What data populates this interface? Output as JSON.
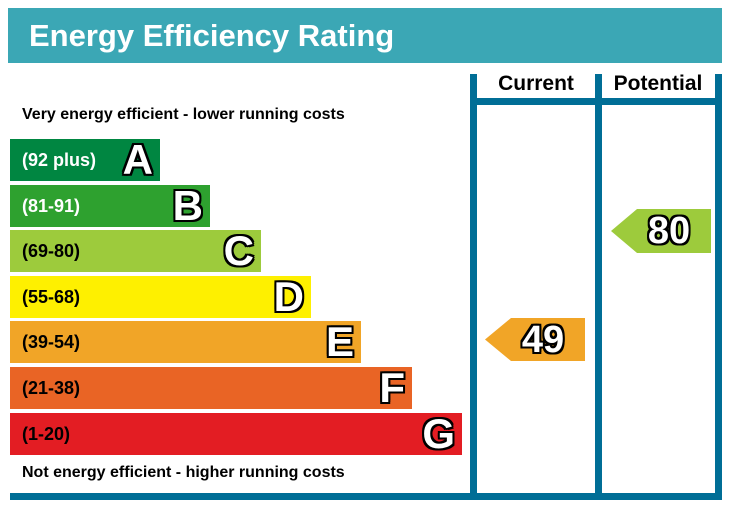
{
  "title": "Energy Efficiency Rating",
  "header": {
    "current": "Current",
    "potential": "Potential"
  },
  "captions": {
    "top": "Very energy efficient - lower running costs",
    "bottom": "Not energy efficient - higher running costs"
  },
  "colors": {
    "title_bg": "#3BA7B5",
    "frame": "#006E96",
    "current_arrow": "#F1A527",
    "potential_arrow": "#9DCB3C"
  },
  "chart_data": {
    "type": "bar",
    "title": "Energy Efficiency Rating",
    "bands": [
      {
        "letter": "A",
        "range_label": "(92 plus)",
        "min": 92,
        "max": 100,
        "color": "#008641",
        "label_color": "#FFFFFF"
      },
      {
        "letter": "B",
        "range_label": "(81-91)",
        "min": 81,
        "max": 91,
        "color": "#2EA12F",
        "label_color": "#FFFFFF"
      },
      {
        "letter": "C",
        "range_label": "(69-80)",
        "min": 69,
        "max": 80,
        "color": "#9DCB3C",
        "label_color": "#000000"
      },
      {
        "letter": "D",
        "range_label": "(55-68)",
        "min": 55,
        "max": 68,
        "color": "#FEF000",
        "label_color": "#000000"
      },
      {
        "letter": "E",
        "range_label": "(39-54)",
        "min": 39,
        "max": 54,
        "color": "#F1A527",
        "label_color": "#000000"
      },
      {
        "letter": "F",
        "range_label": "(21-38)",
        "min": 21,
        "max": 38,
        "color": "#E96425",
        "label_color": "#000000"
      },
      {
        "letter": "G",
        "range_label": "(1-20)",
        "min": 1,
        "max": 20,
        "color": "#E31D23",
        "label_color": "#000000"
      }
    ],
    "current": {
      "value": 49,
      "band": "E"
    },
    "potential": {
      "value": 80,
      "band": "C"
    },
    "annotations": [
      "Very energy efficient - lower running costs",
      "Not energy efficient - higher running costs"
    ],
    "legend_position": "none",
    "grid": false
  }
}
